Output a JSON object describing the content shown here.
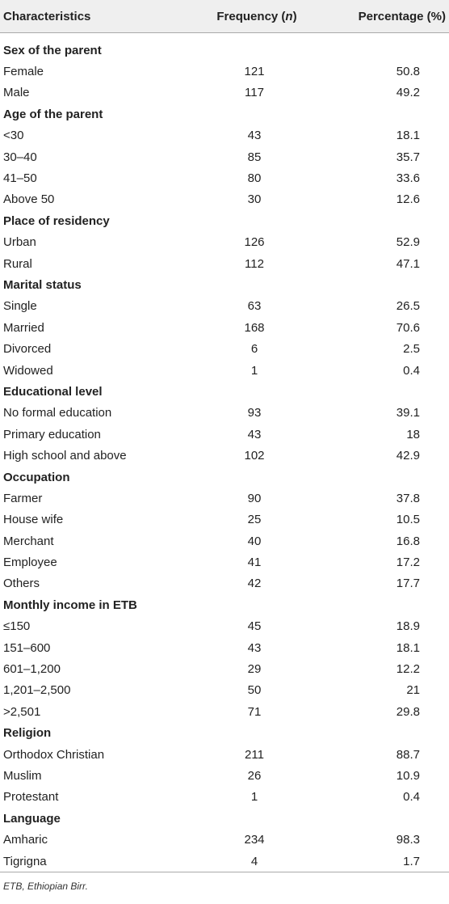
{
  "headers": [
    "Characteristics",
    "Frequency (",
    "n",
    ")",
    "Percentage (%)"
  ],
  "sections": [
    {
      "title": "Sex of the parent",
      "rows": [
        [
          "Female",
          "121",
          "50.8"
        ],
        [
          "Male",
          "117",
          "49.2"
        ]
      ]
    },
    {
      "title": "Age of the parent",
      "rows": [
        [
          "<30",
          "43",
          "18.1"
        ],
        [
          "30–40",
          "85",
          "35.7"
        ],
        [
          "41–50",
          "80",
          "33.6"
        ],
        [
          "Above 50",
          "30",
          "12.6"
        ]
      ]
    },
    {
      "title": "Place of residency",
      "rows": [
        [
          "Urban",
          "126",
          "52.9"
        ],
        [
          "Rural",
          "112",
          "47.1"
        ]
      ]
    },
    {
      "title": "Marital status",
      "rows": [
        [
          "Single",
          "63",
          "26.5"
        ],
        [
          "Married",
          "168",
          "70.6"
        ],
        [
          "Divorced",
          "6",
          "2.5"
        ],
        [
          "Widowed",
          "1",
          "0.4"
        ]
      ]
    },
    {
      "title": "Educational level",
      "rows": [
        [
          "No formal education",
          "93",
          "39.1"
        ],
        [
          "Primary education",
          "43",
          "18"
        ],
        [
          "High school and above",
          "102",
          "42.9"
        ]
      ]
    },
    {
      "title": "Occupation",
      "rows": [
        [
          "Farmer",
          "90",
          "37.8"
        ],
        [
          "House wife",
          "25",
          "10.5"
        ],
        [
          "Merchant",
          "40",
          "16.8"
        ],
        [
          "Employee",
          "41",
          "17.2"
        ],
        [
          "Others",
          "42",
          "17.7"
        ]
      ]
    },
    {
      "title": "Monthly income in ETB",
      "rows": [
        [
          "≤150",
          "45",
          "18.9"
        ],
        [
          "151–600",
          "43",
          "18.1"
        ],
        [
          "601–1,200",
          "29",
          "12.2"
        ],
        [
          "1,201–2,500",
          "50",
          "21"
        ],
        [
          ">2,501",
          "71",
          "29.8"
        ]
      ]
    },
    {
      "title": "Religion",
      "rows": [
        [
          "Orthodox Christian",
          "211",
          "88.7"
        ],
        [
          "Muslim",
          "26",
          "10.9"
        ],
        [
          "Protestant",
          "1",
          "0.4"
        ]
      ]
    },
    {
      "title": "Language",
      "rows": [
        [
          "Amharic",
          "234",
          "98.3"
        ],
        [
          "Tigrigna",
          "4",
          "1.7"
        ]
      ]
    }
  ],
  "footnote": "ETB, Ethiopian Birr."
}
